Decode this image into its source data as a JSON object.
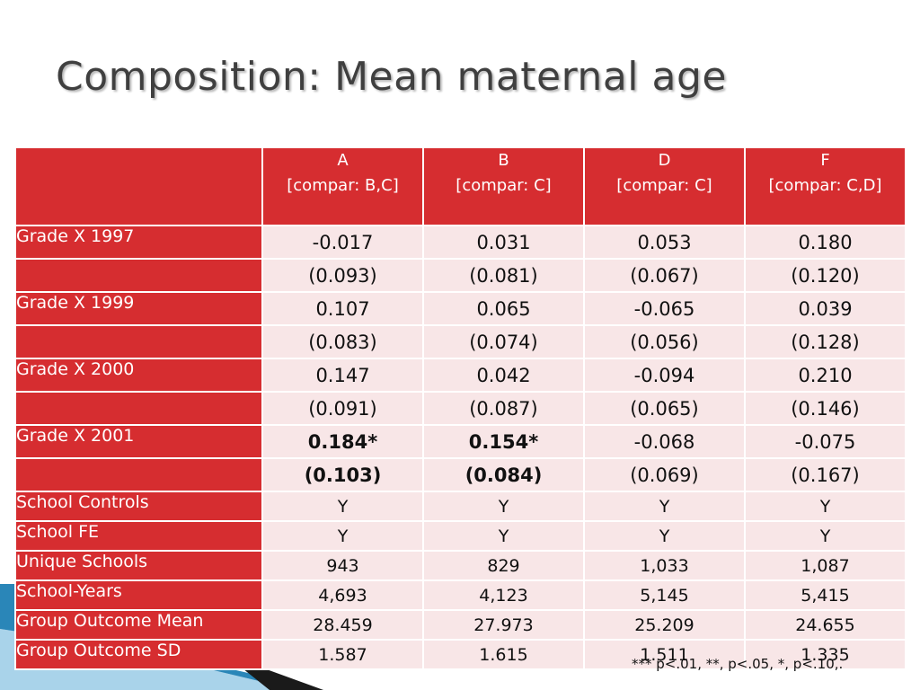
{
  "title": "Composition: Mean maternal age",
  "columns": [
    {
      "letter": "A",
      "compar": "[compar: B,C]"
    },
    {
      "letter": "B",
      "compar": "[compar: C]"
    },
    {
      "letter": "D",
      "compar": "[compar: C]"
    },
    {
      "letter": "F",
      "compar": "[compar: C,D]"
    }
  ],
  "rows": [
    {
      "label": "Grade X 1997",
      "type": "coef",
      "values": [
        "-0.017",
        "0.031",
        "0.053",
        "0.180"
      ],
      "bold": [
        false,
        false,
        false,
        false
      ]
    },
    {
      "label": "",
      "type": "se",
      "values": [
        "(0.093)",
        "(0.081)",
        "(0.067)",
        "(0.120)"
      ],
      "bold": [
        false,
        false,
        false,
        false
      ]
    },
    {
      "label": "Grade X 1999",
      "type": "coef",
      "values": [
        "0.107",
        "0.065",
        "-0.065",
        "0.039"
      ],
      "bold": [
        false,
        false,
        false,
        false
      ]
    },
    {
      "label": "",
      "type": "se",
      "values": [
        "(0.083)",
        "(0.074)",
        "(0.056)",
        "(0.128)"
      ],
      "bold": [
        false,
        false,
        false,
        false
      ]
    },
    {
      "label": "Grade X 2000",
      "type": "coef",
      "values": [
        "0.147",
        "0.042",
        "-0.094",
        "0.210"
      ],
      "bold": [
        false,
        false,
        false,
        false
      ]
    },
    {
      "label": "",
      "type": "se",
      "values": [
        "(0.091)",
        "(0.087)",
        "(0.065)",
        "(0.146)"
      ],
      "bold": [
        false,
        false,
        false,
        false
      ]
    },
    {
      "label": "Grade X 2001",
      "type": "coef",
      "values": [
        "0.184*",
        "0.154*",
        "-0.068",
        "-0.075"
      ],
      "bold": [
        true,
        true,
        false,
        false
      ]
    },
    {
      "label": "",
      "type": "se",
      "values": [
        "(0.103)",
        "(0.084)",
        "(0.069)",
        "(0.167)"
      ],
      "bold": [
        true,
        true,
        false,
        false
      ]
    },
    {
      "label": "School Controls",
      "type": "small",
      "values": [
        "Y",
        "Y",
        "Y",
        "Y"
      ],
      "bold": [
        false,
        false,
        false,
        false
      ]
    },
    {
      "label": "School FE",
      "type": "small",
      "values": [
        "Y",
        "Y",
        "Y",
        "Y"
      ],
      "bold": [
        false,
        false,
        false,
        false
      ]
    },
    {
      "label": "Unique Schools",
      "type": "small",
      "values": [
        "943",
        "829",
        "1,033",
        "1,087"
      ],
      "bold": [
        false,
        false,
        false,
        false
      ]
    },
    {
      "label": "School-Years",
      "type": "small",
      "values": [
        "4,693",
        "4,123",
        "5,145",
        "5,415"
      ],
      "bold": [
        false,
        false,
        false,
        false
      ]
    },
    {
      "label": "Group Outcome Mean",
      "type": "small",
      "values": [
        "28.459",
        "27.973",
        "25.209",
        "24.655"
      ],
      "bold": [
        false,
        false,
        false,
        false
      ]
    },
    {
      "label": "Group Outcome SD",
      "type": "small",
      "values": [
        "1.587",
        "1.615",
        "1.511",
        "1.335"
      ],
      "bold": [
        false,
        false,
        false,
        false
      ]
    }
  ],
  "note": "*** p<.01, **, p<.05, *, p<.10,.",
  "colors": {
    "header_red": "#d62d30",
    "cell_pink": "#f8e6e7",
    "title_gray": "#3f3f3f",
    "deco_blue": "#2a86b8",
    "deco_light_blue": "#a9d3ea",
    "deco_black": "#111111"
  }
}
